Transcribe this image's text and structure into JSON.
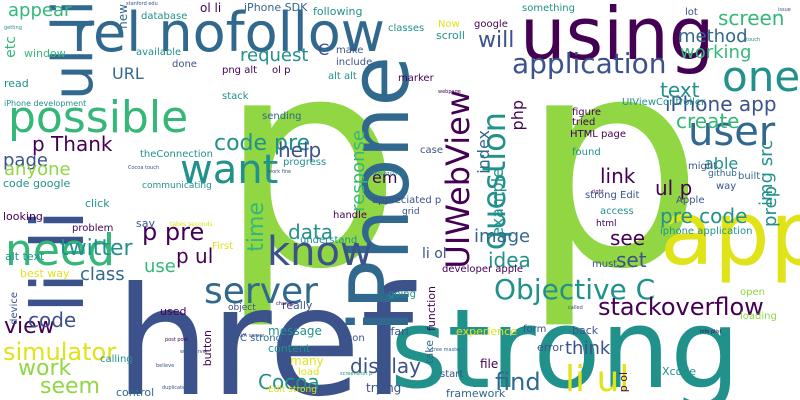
{
  "palette": {
    "purple": "#440154",
    "indigo": "#3b528b",
    "blue": "#31688e",
    "teal": "#21918c",
    "green": "#35b779",
    "lime": "#90d743",
    "yellow": "#dfe318"
  },
  "words": {
    "p_left": "p",
    "p_right": "p",
    "href": "href",
    "strong": "strong",
    "iphone_big": "iPhone",
    "app": "app",
    "using": "using",
    "li_li": "li li",
    "ul_li": "ul li",
    "rel_nofollow": "rel nofollow",
    "possible": "possible",
    "need": "need",
    "want": "want",
    "know": "know",
    "server": "server",
    "uiwebview": "UIWebView",
    "question": "question",
    "one": "one",
    "user": "user",
    "application": "application",
    "iphone_app": "iPhone app",
    "objective_c": "Objective C",
    "stackoverflow": "stackoverflow",
    "li_ul": "li ul",
    "code_pre": "code pre",
    "p_thank": "p Thank",
    "simulator": "simulator",
    "find": "find",
    "display": "display",
    "cocoa": "Cocoa",
    "seem": "seem",
    "work": "work",
    "view": "view",
    "code": "code",
    "class": "class",
    "twitter": "twitter",
    "page": "page",
    "anyone": "anyone",
    "p_pre": "p pre",
    "p_ul": "p ul",
    "time": "time",
    "data": "data",
    "help": "help",
    "response": "response",
    "image": "image",
    "idea": "idea",
    "see": "see",
    "set": "set",
    "think": "think",
    "pre_code": "pre code",
    "link": "link",
    "text": "text",
    "create": "create",
    "method": "method",
    "working": "working",
    "screen": "screen",
    "will": "will",
    "request": "request",
    "url": "URL",
    "em": "em",
    "example": "example",
    "index": "index",
    "php": "php",
    "ul_p": "ul p",
    "able": "able",
    "img_src": "img src",
    "prep": "prep",
    "appear": "appear",
    "c_small": "C",
    "etc": "etc",
    "use": "use",
    "li_ol": "li ol",
    "message": "message",
    "content": "content",
    "many": "many",
    "button": "button",
    "take": "take",
    "trying": "trying",
    "framework": "framework",
    "xcode": "Xcode",
    "p_ol": "p ol",
    "error": "error",
    "back": "back",
    "form": "form",
    "file": "file",
    "experience": "experience",
    "safari": "safari",
    "function": "function",
    "really": "really",
    "going": "going",
    "used": "used",
    "c_strong": "C strong",
    "viewcontroller": "viewcontroller",
    "control": "control",
    "calling": "calling",
    "device": "device",
    "best_way": "best way",
    "alt_text": "alt text",
    "looking": "looking",
    "click": "click",
    "first": "First",
    "problem": "problem",
    "say": "say",
    "code_google": "code google",
    "iphone_development": "iPhone development",
    "read": "read",
    "window": "window",
    "new": "new",
    "database": "database",
    "iphone_sdk": "iPhone SDK",
    "ol_li": "ol li",
    "following": "following",
    "available": "available",
    "done": "done",
    "png_alt": "png alt",
    "make": "make",
    "include": "include",
    "ol_p": "ol p",
    "alt_alt": "alt alt",
    "marker": "marker",
    "classes": "classes",
    "scroll": "scroll",
    "now": "Now",
    "google": "google",
    "something": "something",
    "lot": "lot",
    "uiviewcontroller": "UIViewController",
    "tried": "tried",
    "figure": "figure",
    "html_page": "HTML page",
    "found": "found",
    "case": "case",
    "might": "might",
    "github": "github",
    "way": "way",
    "built": "built",
    "apple": "Apple",
    "iphone_application": "iphone application",
    "strong_edit": "strong Edit",
    "access": "access",
    "html": "html",
    "must": "must",
    "developer_apple": "developer apple",
    "appreciated_p": "appreciated p",
    "grid": "grid",
    "handle": "handle",
    "understand": "understand",
    "sending": "sending",
    "clear": "clear",
    "progress": "progress",
    "communicating": "communicating",
    "theconnection": "theConnection",
    "stack": "stack",
    "object": "object",
    "icon": "icon",
    "load": "load",
    "edit_strong": "Edit strong",
    "start": "start",
    "open": "open",
    "loading": "loading",
    "tiny_stanford": "stanford edu",
    "tiny_getting": "getting",
    "tiny_post": "post post",
    "tiny_work": "work fine",
    "tiny_tree": "tree master",
    "tiny_screenshot": "screenshot p",
    "tiny_blockquote": "blockquote p",
    "tiny_webpage": "webpage",
    "tiny_touch": "touch",
    "tiny_issue": "issue",
    "tiny_info": "info plist",
    "tiny_called": "called",
    "tiny_right": "right",
    "tiny_change": "change",
    "tiny_duplicate": "duplicate",
    "tiny_believe": "believe",
    "tiny_web_server": "web server",
    "tiny_takes": "takes seconds",
    "tiny_cocoa_touch": "Cocoa touch",
    "tiny_java": "JAVA server"
  }
}
